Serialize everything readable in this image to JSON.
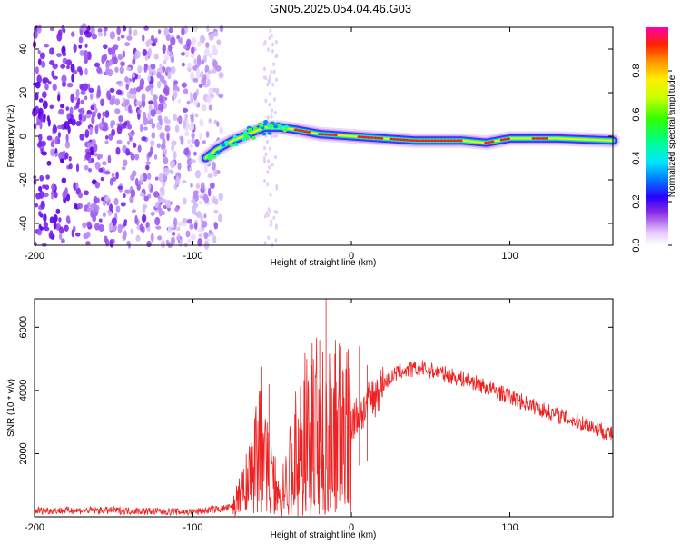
{
  "title": "GN05.2025.054.04.46.G03",
  "colors": {
    "snr_line": "#ee2222",
    "frame": "#000000"
  },
  "chart_data": [
    {
      "type": "heatmap",
      "xlabel": "Height of straight line (km)",
      "ylabel": "Frequency (Hz)",
      "xlim": [
        -200,
        165
      ],
      "ylim": [
        -50,
        50
      ],
      "xticks": [
        -200,
        -100,
        0,
        100
      ],
      "yticks": [
        -40,
        -20,
        0,
        20,
        40
      ],
      "colorbar": {
        "label": "Normalized spectral amplitude",
        "ticks": [
          "0.0",
          "0.2",
          "0.4",
          "0.6",
          "0.8"
        ],
        "tick_values": [
          0,
          0.2,
          0.4,
          0.6,
          0.8
        ],
        "range": [
          0,
          1
        ]
      },
      "signal_track": [
        {
          "x": -92,
          "y": -10
        },
        {
          "x": -85,
          "y": -6
        },
        {
          "x": -75,
          "y": -2
        },
        {
          "x": -65,
          "y": 1
        },
        {
          "x": -55,
          "y": 4
        },
        {
          "x": -45,
          "y": 4
        },
        {
          "x": -35,
          "y": 3
        },
        {
          "x": -20,
          "y": 1
        },
        {
          "x": 0,
          "y": 0
        },
        {
          "x": 40,
          "y": -2
        },
        {
          "x": 70,
          "y": -2
        },
        {
          "x": 85,
          "y": -3
        },
        {
          "x": 100,
          "y": -1
        },
        {
          "x": 130,
          "y": -1
        },
        {
          "x": 165,
          "y": -2
        }
      ]
    },
    {
      "type": "line",
      "xlabel": "Height of straight line (km)",
      "ylabel": "SNR (10 * v/v)",
      "xlim": [
        -200,
        165
      ],
      "ylim": [
        0,
        6900
      ],
      "xticks": [
        -200,
        -100,
        0,
        100
      ],
      "yticks": [
        2000,
        4000,
        6000
      ],
      "envelope": [
        {
          "x": -200,
          "y": 200
        },
        {
          "x": -150,
          "y": 200
        },
        {
          "x": -100,
          "y": 150
        },
        {
          "x": -75,
          "y": 300
        },
        {
          "x": -65,
          "y": 1200
        },
        {
          "x": -58,
          "y": 2500
        },
        {
          "x": -52,
          "y": 1800
        },
        {
          "x": -46,
          "y": 600
        },
        {
          "x": -40,
          "y": 1400
        },
        {
          "x": -32,
          "y": 2600
        },
        {
          "x": -25,
          "y": 3200
        },
        {
          "x": -18,
          "y": 3000
        },
        {
          "x": -10,
          "y": 3000
        },
        {
          "x": 0,
          "y": 3000
        },
        {
          "x": 10,
          "y": 3500
        },
        {
          "x": 20,
          "y": 4200
        },
        {
          "x": 30,
          "y": 4600
        },
        {
          "x": 45,
          "y": 4700
        },
        {
          "x": 60,
          "y": 4500
        },
        {
          "x": 75,
          "y": 4300
        },
        {
          "x": 100,
          "y": 3800
        },
        {
          "x": 125,
          "y": 3300
        },
        {
          "x": 150,
          "y": 2900
        },
        {
          "x": 165,
          "y": 2600
        }
      ],
      "spikes": [
        {
          "x": -57,
          "y": 4750
        },
        {
          "x": -52,
          "y": 4200
        },
        {
          "x": -25,
          "y": 4800
        },
        {
          "x": -20,
          "y": 5600
        },
        {
          "x": -16,
          "y": 6900
        },
        {
          "x": -10,
          "y": 5600
        },
        {
          "x": -7,
          "y": 5400
        },
        {
          "x": 5,
          "y": 5400
        },
        {
          "x": 10,
          "y": 4800
        }
      ]
    }
  ]
}
